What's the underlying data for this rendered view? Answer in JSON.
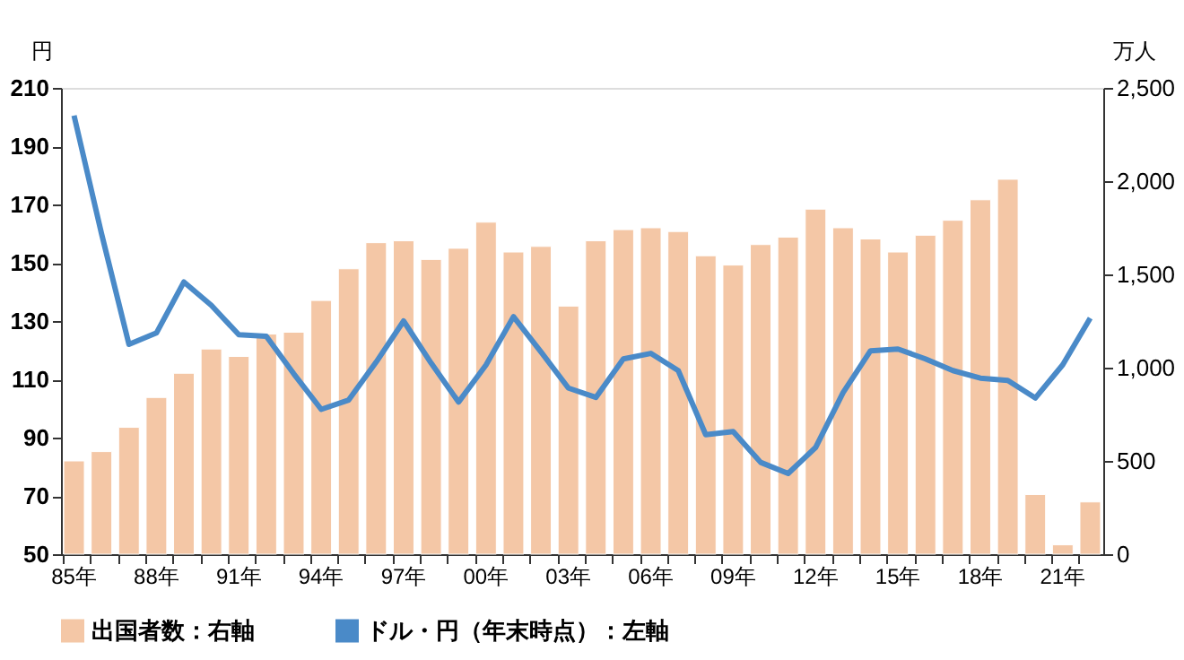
{
  "chart_data": {
    "type": "bar",
    "categories": [
      "85年",
      null,
      null,
      "88年",
      null,
      null,
      "91年",
      null,
      null,
      "94年",
      null,
      null,
      "97年",
      null,
      null,
      "00年",
      null,
      null,
      "03年",
      null,
      null,
      "06年",
      null,
      null,
      "09年",
      null,
      null,
      "12年",
      null,
      null,
      "15年",
      null,
      null,
      "18年",
      null,
      null,
      "21年",
      null
    ],
    "series": [
      {
        "name": "出国者数：右軸",
        "axis": "y2",
        "color": "#f4c7a6",
        "values": [
          500,
          550,
          680,
          840,
          970,
          1100,
          1060,
          1180,
          1190,
          1360,
          1530,
          1670,
          1680,
          1580,
          1640,
          1780,
          1620,
          1650,
          1330,
          1680,
          1740,
          1750,
          1730,
          1600,
          1550,
          1660,
          1700,
          1850,
          1750,
          1690,
          1620,
          1710,
          1790,
          1900,
          2010,
          320,
          50,
          280
        ]
      },
      {
        "name": "ドル・円（年末時点）：左軸",
        "type": "line",
        "color": "#4a8ac8",
        "values": [
          200.5,
          160,
          122,
          125.9,
          143.4,
          135.4,
          125.3,
          124.8,
          111.9,
          99.7,
          102.9,
          115.9,
          130,
          115.6,
          102.2,
          114.9,
          131.5,
          119.4,
          107,
          103.8,
          117,
          118.9,
          113,
          91,
          92.1,
          81.5,
          77.7,
          86.6,
          105.4,
          119.8,
          120.4,
          117,
          113,
          110.4,
          109.6,
          103.6,
          115,
          131
        ]
      }
    ],
    "ylabel": "円",
    "y2label": "万人",
    "ylim": [
      50,
      210
    ],
    "yticks": [
      50,
      70,
      90,
      110,
      130,
      150,
      170,
      190,
      210
    ],
    "y2lim": [
      0,
      2500
    ],
    "y2ticks": [
      0,
      500,
      {
        "value": 1000,
        "label": "1,000"
      },
      {
        "value": 1500,
        "label": "1,500"
      },
      {
        "value": 2000,
        "label": "2,000"
      },
      {
        "value": 2500,
        "label": "2,500"
      }
    ],
    "legend": "bottom",
    "grid": false,
    "marker": "none",
    "line_style": "solid"
  }
}
